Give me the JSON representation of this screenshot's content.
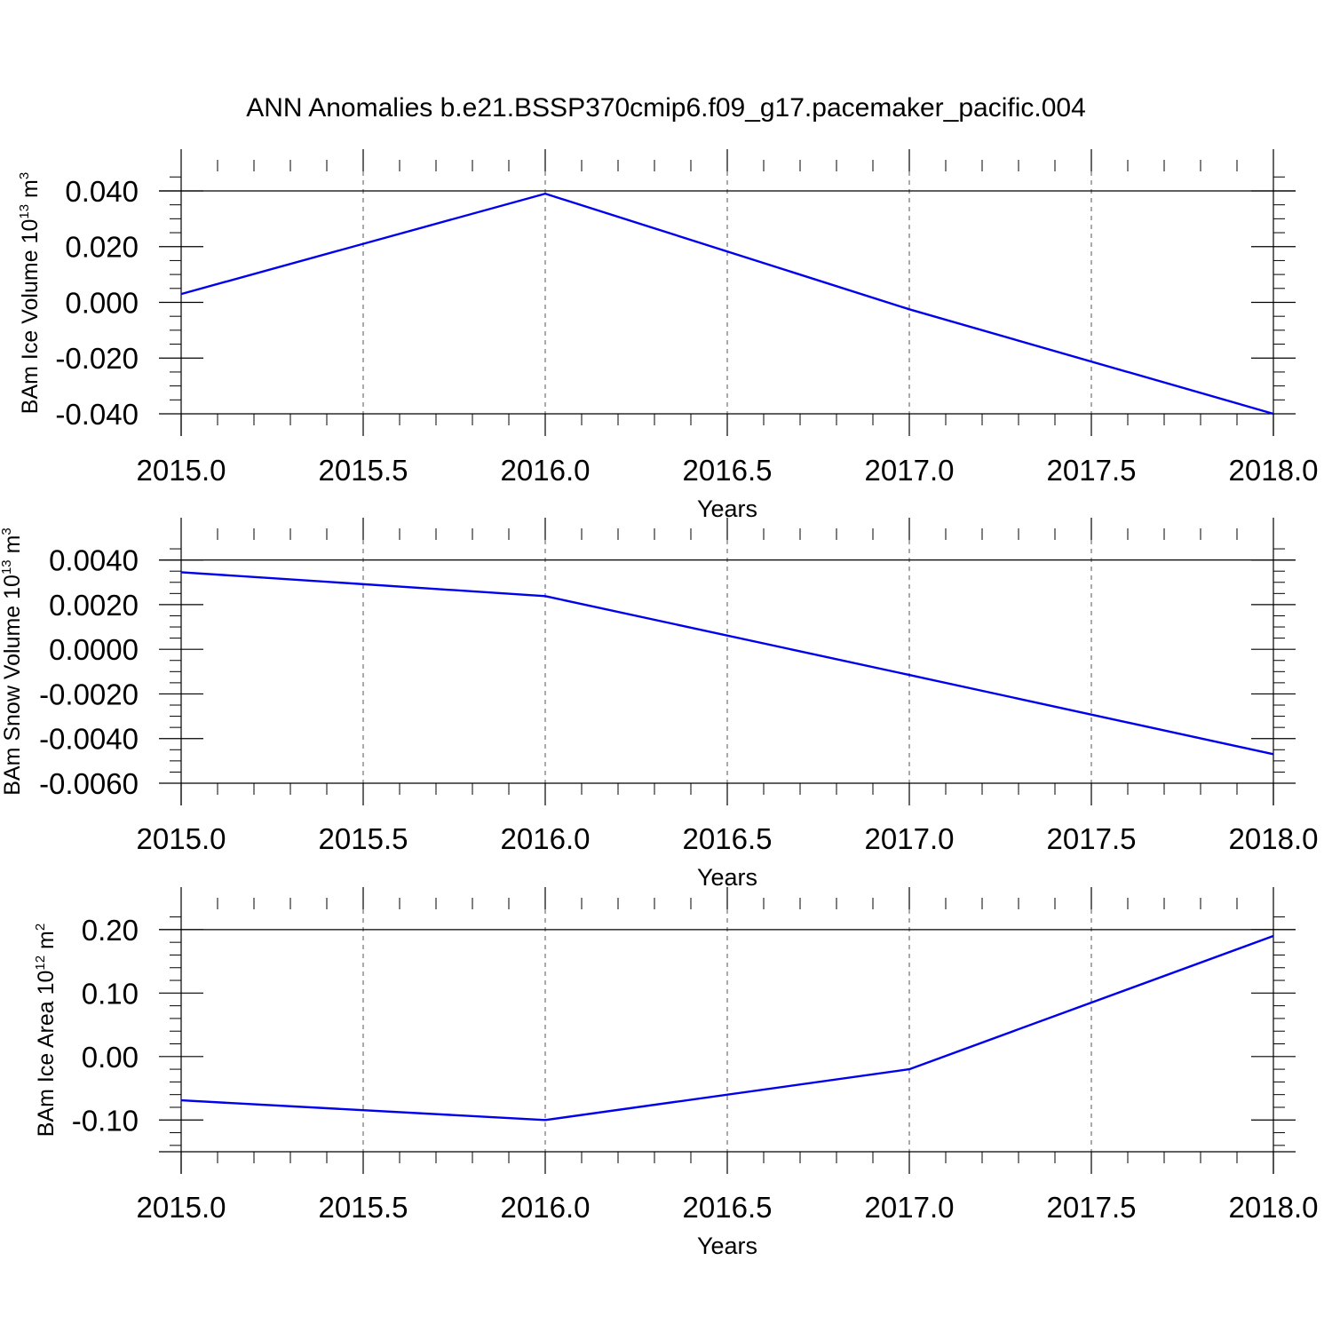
{
  "title": "ANN Anomalies b.e21.BSSP370cmip6.f09_g17.pacemaker_pacific.004",
  "chart_data": [
    {
      "type": "line",
      "ylabel": {
        "text": "BAm Ice Volume 10",
        "exp": "13",
        "unit": " m",
        "unit_exp": "3"
      },
      "xlabel": "Years",
      "xlim": [
        2015.0,
        2018.0
      ],
      "ylim": [
        -0.04,
        0.047
      ],
      "yticks": [
        "0.040",
        "0.020",
        "0.000",
        "-0.020",
        "-0.040"
      ],
      "ytick_values": [
        0.04,
        0.02,
        0.0,
        -0.02,
        -0.04
      ],
      "xticks": [
        "2015.0",
        "2015.5",
        "2016.0",
        "2016.5",
        "2017.0",
        "2017.5",
        "2018.0"
      ],
      "xtick_values": [
        2015.0,
        2015.5,
        2016.0,
        2016.5,
        2017.0,
        2017.5,
        2018.0
      ],
      "x_minor_step": 0.1,
      "y_minor_step": 0.005,
      "grid": "vertical dashed at major x ticks",
      "series": [
        {
          "color": "#0000ee",
          "x": [
            2015,
            2016,
            2017,
            2018
          ],
          "values": [
            0.003,
            0.039,
            -0.0025,
            -0.04
          ]
        }
      ]
    },
    {
      "type": "line",
      "ylabel": {
        "text": "BAm Snow Volume 10",
        "exp": "13",
        "unit": " m",
        "unit_exp": "3"
      },
      "xlabel": "Years",
      "xlim": [
        2015.0,
        2018.0
      ],
      "ylim": [
        -0.006,
        0.0049
      ],
      "yticks": [
        "0.0040",
        "0.0020",
        "0.0000",
        "-0.0020",
        "-0.0040",
        "-0.0060"
      ],
      "ytick_values": [
        0.004,
        0.002,
        0.0,
        -0.002,
        -0.004,
        -0.006
      ],
      "xticks": [
        "2015.0",
        "2015.5",
        "2016.0",
        "2016.5",
        "2017.0",
        "2017.5",
        "2018.0"
      ],
      "xtick_values": [
        2015.0,
        2015.5,
        2016.0,
        2016.5,
        2017.0,
        2017.5,
        2018.0
      ],
      "x_minor_step": 0.1,
      "y_minor_step": 0.0005,
      "grid": "vertical dashed at major x ticks",
      "series": [
        {
          "color": "#0000ee",
          "x": [
            2015,
            2016,
            2017,
            2018
          ],
          "values": [
            0.00345,
            0.00238,
            -0.00115,
            -0.0047
          ]
        }
      ]
    },
    {
      "type": "line",
      "ylabel": {
        "text": "BAm Ice Area 10",
        "exp": "12",
        "unit": " m",
        "unit_exp": "2"
      },
      "xlabel": "Years",
      "xlim": [
        2015.0,
        2018.0
      ],
      "ylim": [
        -0.15,
        0.232
      ],
      "yticks": [
        "0.20",
        "0.10",
        "0.00",
        "-0.10"
      ],
      "ytick_values": [
        0.2,
        0.1,
        0.0,
        -0.1
      ],
      "xticks": [
        "2015.0",
        "2015.5",
        "2016.0",
        "2016.5",
        "2017.0",
        "2017.5",
        "2018.0"
      ],
      "xtick_values": [
        2015.0,
        2015.5,
        2016.0,
        2016.5,
        2017.0,
        2017.5,
        2018.0
      ],
      "x_minor_step": 0.1,
      "y_minor_step": 0.02,
      "grid": "vertical dashed at major x ticks",
      "series": [
        {
          "color": "#0000ee",
          "x": [
            2015,
            2016,
            2017,
            2018
          ],
          "values": [
            -0.069,
            -0.1,
            -0.02,
            0.19
          ]
        }
      ]
    }
  ]
}
